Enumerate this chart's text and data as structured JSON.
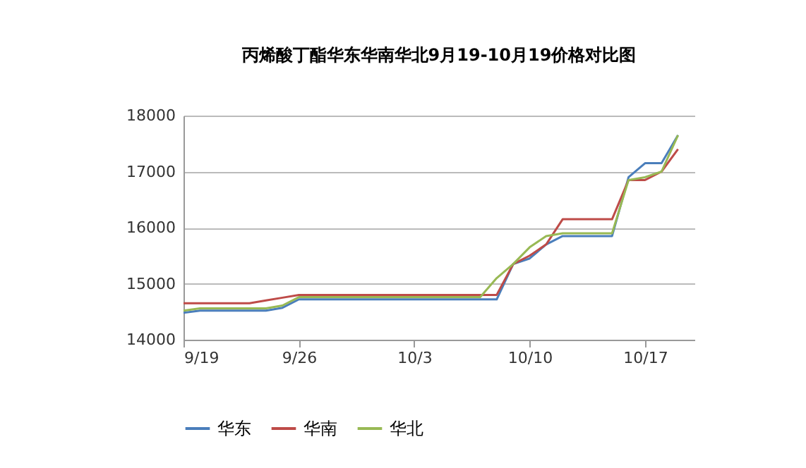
{
  "chart_data": {
    "type": "line",
    "title": "丙烯酸丁酯华东华南华北9月19-10月19价格对比图",
    "x": [
      "--09-19",
      "--09-20",
      "--09-21",
      "--09-22",
      "--09-23",
      "--09-24",
      "--09-25",
      "--09-26",
      "--09-27",
      "--09-28",
      "--09-29",
      "--09-30",
      "--10-01",
      "--10-02",
      "--10-03",
      "--10-04",
      "--10-05",
      "--10-06",
      "--10-07",
      "--10-08",
      "--10-09",
      "--10-10",
      "--10-11",
      "--10-12",
      "--10-13",
      "--10-14",
      "--10-15",
      "--10-16",
      "--10-17",
      "--10-18",
      "--10-19"
    ],
    "series": [
      {
        "name": "华东",
        "color": "#4a7ebb",
        "values": [
          14480,
          14520,
          14520,
          14520,
          14520,
          14520,
          14570,
          14720,
          14720,
          14720,
          14720,
          14720,
          14720,
          14720,
          14720,
          14720,
          14720,
          14720,
          14720,
          14720,
          15350,
          15450,
          15700,
          15850,
          15850,
          15850,
          15850,
          16900,
          17150,
          17150,
          17650
        ]
      },
      {
        "name": "华南",
        "color": "#be4b48",
        "values": [
          14650,
          14650,
          14650,
          14650,
          14650,
          14700,
          14750,
          14800,
          14800,
          14800,
          14800,
          14800,
          14800,
          14800,
          14800,
          14800,
          14800,
          14800,
          14800,
          14800,
          15350,
          15500,
          15700,
          16150,
          16150,
          16150,
          16150,
          16850,
          16850,
          17000,
          17400
        ]
      },
      {
        "name": "华北",
        "color": "#98b954",
        "values": [
          14520,
          14560,
          14560,
          14560,
          14560,
          14560,
          14610,
          14760,
          14760,
          14760,
          14760,
          14760,
          14760,
          14760,
          14760,
          14760,
          14760,
          14760,
          14760,
          15100,
          15350,
          15650,
          15850,
          15900,
          15900,
          15900,
          15900,
          16850,
          16900,
          17000,
          17650
        ]
      }
    ],
    "xlim": [
      "--09-19",
      "--10-20"
    ],
    "xticks": [
      {
        "value": "--09-19",
        "label": "9/19"
      },
      {
        "value": "--09-26",
        "label": "9/26"
      },
      {
        "value": "--10-03",
        "label": "10/3"
      },
      {
        "value": "--10-10",
        "label": "10/10"
      },
      {
        "value": "--10-17",
        "label": "10/17"
      }
    ],
    "ylim": [
      14000,
      18000
    ],
    "yticks": [
      14000,
      15000,
      16000,
      17000,
      18000
    ],
    "grid": "y",
    "legend": "bottom",
    "marker": "none",
    "line_style": "solid"
  }
}
